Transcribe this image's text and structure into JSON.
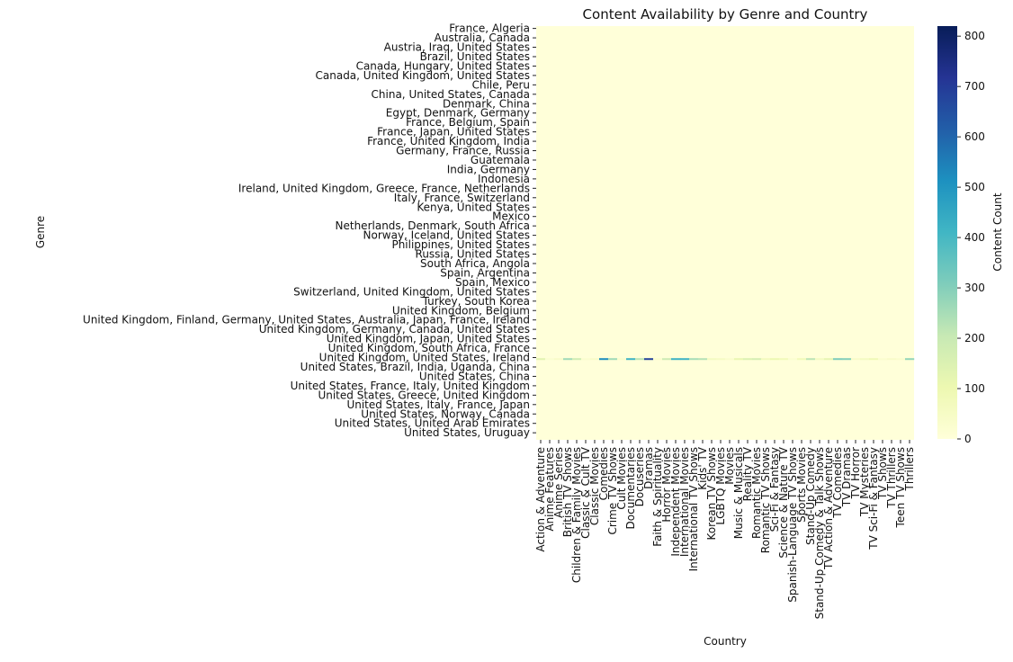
{
  "chart_data": {
    "type": "heatmap",
    "title": "Content Availability by Genre and Country",
    "xlabel": "Country",
    "ylabel": "Genre",
    "colorbar_label": "Content Count",
    "colormap": "YlGnBu",
    "vmin": 0,
    "vmax": 820,
    "colorbar_ticks": [
      0,
      100,
      200,
      300,
      400,
      500,
      600,
      700,
      800
    ],
    "columns": [
      "Action & Adventure",
      "Anime Features",
      "Anime Series",
      "British TV Shows",
      "Children & Family Movies",
      "Classic & Cult TV",
      "Classic Movies",
      "Comedies",
      "Crime TV Shows",
      "Cult Movies",
      "Documentaries",
      "Docuseries",
      "Dramas",
      "Faith & Spirituality",
      "Horror Movies",
      "Independent Movies",
      "International Movies",
      "International TV Shows",
      "Kids' TV",
      "Korean TV Shows",
      "LGBTQ Movies",
      "Movies",
      "Music & Musicals",
      "Reality TV",
      "Romantic Movies",
      "Romantic TV Shows",
      "Sci-Fi & Fantasy",
      "Science & Nature TV",
      "Spanish-Language TV Shows",
      "Sports Movies",
      "Stand-Up Comedy",
      "Stand-Up Comedy & Talk Shows",
      "TV Action & Adventure",
      "TV Comedies",
      "TV Dramas",
      "TV Horror",
      "TV Mysteries",
      "TV Sci-Fi & Fantasy",
      "TV Shows",
      "TV Thrillers",
      "Teen TV Shows",
      "Thrillers"
    ],
    "rows": [
      "France, Algeria",
      "Australia, Canada",
      "Austria, Iraq, United States",
      "Brazil, United States",
      "Canada, Hungary, United States",
      "Canada, United Kingdom, United States",
      "Chile, Peru",
      "China, United States, Canada",
      "Denmark, China",
      "Egypt, Denmark, Germany",
      "France, Belgium, Spain",
      "France, Japan, United States",
      "France, United Kingdom, India",
      "Germany, France, Russia",
      "Guatemala",
      "India, Germany",
      "Indonesia",
      "Ireland, United Kingdom, Greece, France, Netherlands",
      "Italy, France, Switzerland",
      "Kenya, United States",
      "Mexico",
      "Netherlands, Denmark, South Africa",
      "Norway, Iceland, United States",
      "Philippines, United States",
      "Russia, United States",
      "South Africa, Angola",
      "Spain, Argentina",
      "Spain, Mexico",
      "Switzerland, United Kingdom, United States",
      "Turkey, South Korea",
      "United Kingdom, Belgium",
      "United Kingdom, Finland, Germany, United States, Australia, Japan, France, Ireland",
      "United Kingdom, Germany, Canada, United States",
      "United Kingdom, Japan, United States",
      "United Kingdom, South Africa, France",
      "United Kingdom, United States, Ireland",
      "United States, Brazil, India, Uganda, China",
      "United States, China",
      "United States, France, Italy, United Kingdom",
      "United States, Greece, United Kingdom",
      "United States, Italy, France, Japan",
      "United States, Norway, Canada",
      "United States, United Arab Emirates",
      "United States, Uruguay"
    ],
    "highlight_row_label": "United Kingdom, United States, Ireland",
    "highlight_row_values": [
      {
        "column": "Action & Adventure",
        "value": 130
      },
      {
        "column": "Anime Features",
        "value": 20
      },
      {
        "column": "Anime Series",
        "value": 40
      },
      {
        "column": "British TV Shows",
        "value": 260
      },
      {
        "column": "Children & Family Movies",
        "value": 180
      },
      {
        "column": "Classic & Cult TV",
        "value": 25
      },
      {
        "column": "Classic Movies",
        "value": 40
      },
      {
        "column": "Comedies",
        "value": 520
      },
      {
        "column": "Crime TV Shows",
        "value": 260
      },
      {
        "column": "Cult Movies",
        "value": 30
      },
      {
        "column": "Documentaries",
        "value": 420
      },
      {
        "column": "Docuseries",
        "value": 220
      },
      {
        "column": "Dramas",
        "value": 680
      },
      {
        "column": "Faith & Spirituality",
        "value": 30
      },
      {
        "column": "Horror Movies",
        "value": 190
      },
      {
        "column": "Independent Movies",
        "value": 420
      },
      {
        "column": "International Movies",
        "value": 420
      },
      {
        "column": "International TV Shows",
        "value": 250
      },
      {
        "column": "Kids' TV",
        "value": 230
      },
      {
        "column": "Korean TV Shows",
        "value": 60
      },
      {
        "column": "LGBTQ Movies",
        "value": 50
      },
      {
        "column": "Movies",
        "value": 30
      },
      {
        "column": "Music & Musicals",
        "value": 110
      },
      {
        "column": "Reality TV",
        "value": 150
      },
      {
        "column": "Romantic Movies",
        "value": 170
      },
      {
        "column": "Romantic TV Shows",
        "value": 70
      },
      {
        "column": "Sci-Fi & Fantasy",
        "value": 100
      },
      {
        "column": "Science & Nature TV",
        "value": 80
      },
      {
        "column": "Spanish-Language TV Shows",
        "value": 20
      },
      {
        "column": "Sports Movies",
        "value": 80
      },
      {
        "column": "Stand-Up Comedy",
        "value": 220
      },
      {
        "column": "Stand-Up Comedy & Talk Shows",
        "value": 60
      },
      {
        "column": "TV Action & Adventure",
        "value": 120
      },
      {
        "column": "TV Comedies",
        "value": 310
      },
      {
        "column": "TV Dramas",
        "value": 300
      },
      {
        "column": "TV Horror",
        "value": 40
      },
      {
        "column": "TV Mysteries",
        "value": 60
      },
      {
        "column": "TV Sci-Fi & Fantasy",
        "value": 90
      },
      {
        "column": "TV Shows",
        "value": 25
      },
      {
        "column": "TV Thrillers",
        "value": 40
      },
      {
        "column": "Teen TV Shows",
        "value": 30
      },
      {
        "column": "Thrillers",
        "value": 280
      }
    ],
    "other_rows_value": 0,
    "colorbar_position": "right",
    "grid": false
  }
}
